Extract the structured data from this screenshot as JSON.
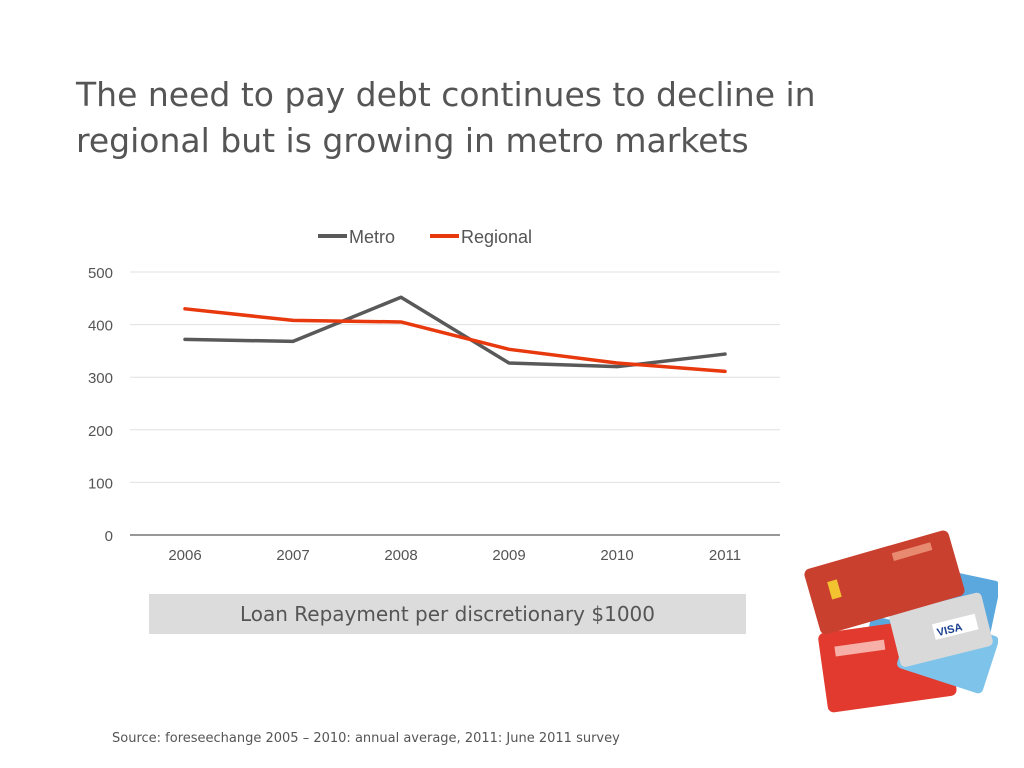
{
  "slide": {
    "title_lines": [
      "The need to pay debt continues to decline in",
      "regional but is growing in metro markets"
    ],
    "caption": "Loan Repayment per discretionary $1000",
    "source": "Source:  foreseechange 2005 – 2010:  annual average, 2011: June 2011 survey",
    "image_label": "VISA"
  },
  "chart_data": {
    "type": "line",
    "title": "",
    "xlabel": "",
    "ylabel": "",
    "categories": [
      "2006",
      "2007",
      "2008",
      "2009",
      "2010",
      "2011"
    ],
    "series": [
      {
        "name": "Metro",
        "color": "#595959",
        "values": [
          372,
          368,
          452,
          327,
          320,
          344
        ]
      },
      {
        "name": "Regional",
        "color": "#e8380d",
        "values": [
          430,
          408,
          405,
          353,
          327,
          311
        ]
      }
    ],
    "ylim": [
      0,
      500
    ],
    "yticks": [
      0,
      100,
      200,
      300,
      400,
      500
    ],
    "grid": true,
    "legend": "top-center"
  }
}
